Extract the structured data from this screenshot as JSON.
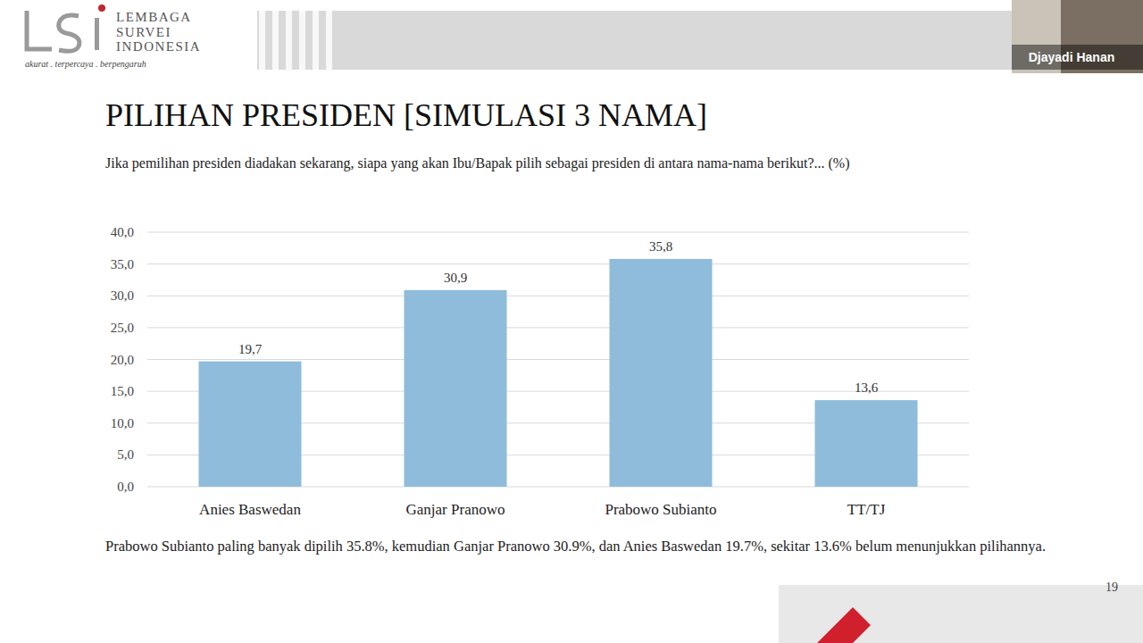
{
  "header": {
    "org_line1": "LEMBAGA",
    "org_line2": "SURVEI",
    "org_line3": "INDONESIA",
    "tagline": "akurat . terpercaya . berpengaruh",
    "presenter": "Djayadi Hanan",
    "page_number": "19"
  },
  "caption": "Prabowo Subianto paling banyak dipilih 35.8%, kemudian Ganjar Pranowo 30.9%, dan Anies Baswedan 19.7%, sekitar 13.6% belum menunjukkan pilihannya.",
  "chart_data": {
    "type": "bar",
    "title": "PILIHAN PRESIDEN [SIMULASI 3 NAMA]",
    "subtitle": "Jika pemilihan presiden diadakan sekarang, siapa yang akan Ibu/Bapak pilih sebagai presiden di antara nama-nama berikut?... (%)",
    "categories": [
      "Anies Baswedan",
      "Ganjar Pranowo",
      "Prabowo Subianto",
      "TT/TJ"
    ],
    "values": [
      19.7,
      30.9,
      35.8,
      13.6
    ],
    "value_labels": [
      "19,7",
      "30,9",
      "35,8",
      "13,6"
    ],
    "color": "#8fbcdb",
    "ylim": [
      0,
      40
    ],
    "yticks": [
      {
        "value": 0,
        "label": "0,0"
      },
      {
        "value": 5,
        "label": "5,0"
      },
      {
        "value": 10,
        "label": "10,0"
      },
      {
        "value": 15,
        "label": "15,0"
      },
      {
        "value": 20,
        "label": "20,0"
      },
      {
        "value": 25,
        "label": "25,0"
      },
      {
        "value": 30,
        "label": "30,0"
      },
      {
        "value": 35,
        "label": "35,0"
      },
      {
        "value": 40,
        "label": "40,0"
      }
    ],
    "grid": true,
    "data_labels": true
  }
}
